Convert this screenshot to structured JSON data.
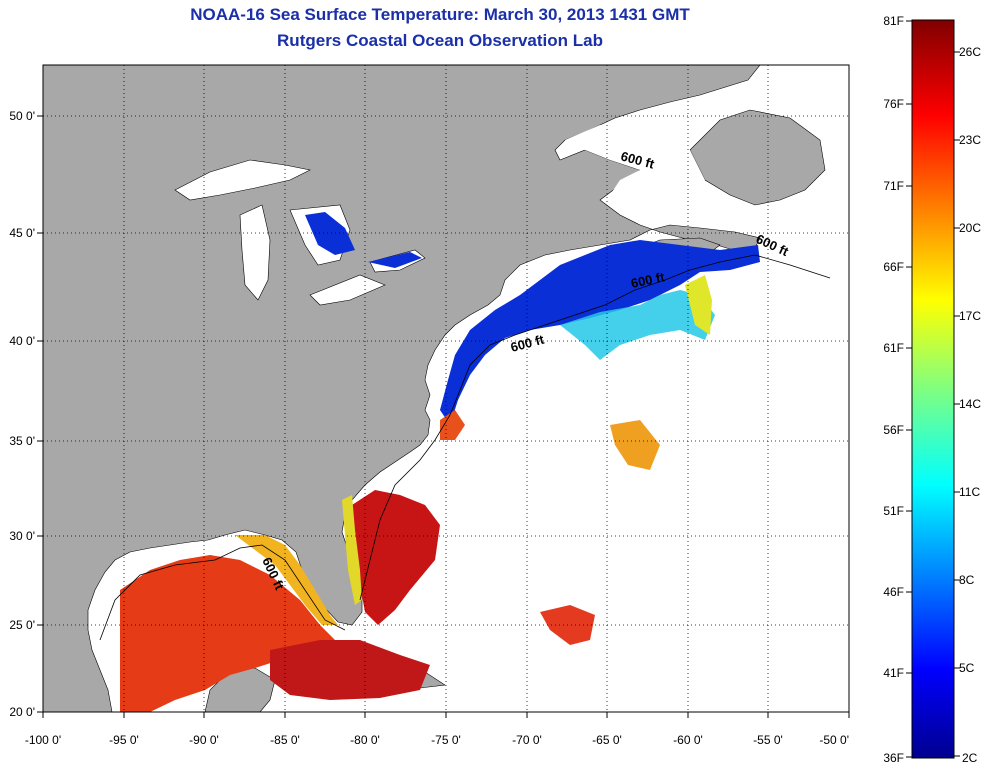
{
  "title": "NOAA-16 Sea Surface Temperature:  March 30, 2013 1431 GMT",
  "subtitle": "Rutgers Coastal Ocean Observation Lab",
  "map": {
    "lon_range": [
      -100,
      -50
    ],
    "lat_range": [
      20,
      52.5
    ],
    "lon_ticks": [
      "-100 0'",
      "-95 0'",
      "-90 0'",
      "-85 0'",
      "-80 0'",
      "-75 0'",
      "-70 0'",
      "-65 0'",
      "-60 0'",
      "-55 0'",
      "-50 0'"
    ],
    "lat_ticks": [
      "20 0'",
      "25 0'",
      "30 0'",
      "35 0'",
      "40 0'",
      "45 0'",
      "50 0'"
    ],
    "contour_labels": [
      "600 ft",
      "600 ft",
      "600 ft",
      "600 ft",
      "600 ft"
    ],
    "colors": {
      "land": "#a8a8a8",
      "ocean_nodata": "#ffffff",
      "grid": "#000000"
    }
  },
  "colorbar": {
    "fahrenheit_labels": [
      "81F",
      "76F",
      "71F",
      "66F",
      "61F",
      "56F",
      "51F",
      "46F",
      "41F",
      "36F"
    ],
    "celsius_labels": [
      "26C",
      "23C",
      "20C",
      "17C",
      "14C",
      "11C",
      "8C",
      "5C",
      "2C"
    ],
    "colormap": "jet"
  }
}
